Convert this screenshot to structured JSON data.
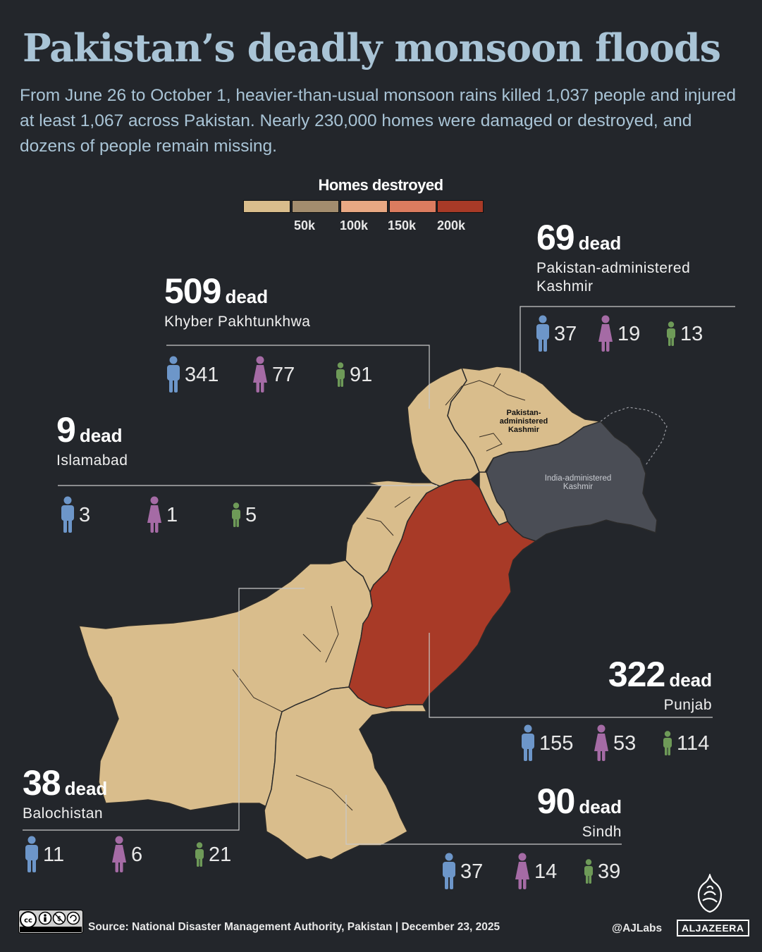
{
  "header": {
    "title": "Pakistan’s deadly monsoon floods",
    "subtitle": "From June 26 to October 1, heavier-than-usual monsoon rains killed 1,037 people and injured at least 1,067 across Pakistan. Nearly 230,000 homes were damaged or destroyed, and dozens of people remain missing."
  },
  "legend": {
    "title": "Homes destroyed",
    "ticks": [
      "50k",
      "100k",
      "150k",
      "200k"
    ],
    "colors": [
      "#d9bd8c",
      "#a38d6e",
      "#e8a883",
      "#db7c5f",
      "#a83a27"
    ]
  },
  "map": {
    "colors": {
      "low": "#d9bd8c",
      "high": "#a83a27",
      "india_kashmir": "#4a4d55",
      "border": "#2a2a2a"
    },
    "labels": {
      "pak_kashmir": "Pakistan-administered Kashmir",
      "india_kashmir": "India-administered Kashmir"
    }
  },
  "icons": {
    "men": "man-icon",
    "women": "woman-icon",
    "children": "child-icon",
    "colors": {
      "men": "#6d96c9",
      "women": "#a56ba5",
      "children": "#6e9a58"
    }
  },
  "regions": {
    "kpk": {
      "dead": "509",
      "dead_word": "dead",
      "name": "Khyber Pakhtunkhwa",
      "men": "341",
      "women": "77",
      "children": "91"
    },
    "kashmir": {
      "dead": "69",
      "dead_word": "dead",
      "name": "Pakistan-administered Kashmir",
      "men": "37",
      "women": "19",
      "children": "13"
    },
    "islamabad": {
      "dead": "9",
      "dead_word": "dead",
      "name": "Islamabad",
      "men": "3",
      "women": "1",
      "children": "5"
    },
    "punjab": {
      "dead": "322",
      "dead_word": "dead",
      "name": "Punjab",
      "men": "155",
      "women": "53",
      "children": "114"
    },
    "balochistan": {
      "dead": "38",
      "dead_word": "dead",
      "name": "Balochistan",
      "men": "11",
      "women": "6",
      "children": "21"
    },
    "sindh": {
      "dead": "90",
      "dead_word": "dead",
      "name": "Sindh",
      "men": "37",
      "women": "14",
      "children": "39"
    }
  },
  "footer": {
    "license": "cc-by-nc-sa-icon",
    "source": "Source:  National Disaster Management Authority, Pakistan   |   December 23, 2025",
    "handle": "@AJLabs",
    "brand": "ALJAZEERA"
  }
}
